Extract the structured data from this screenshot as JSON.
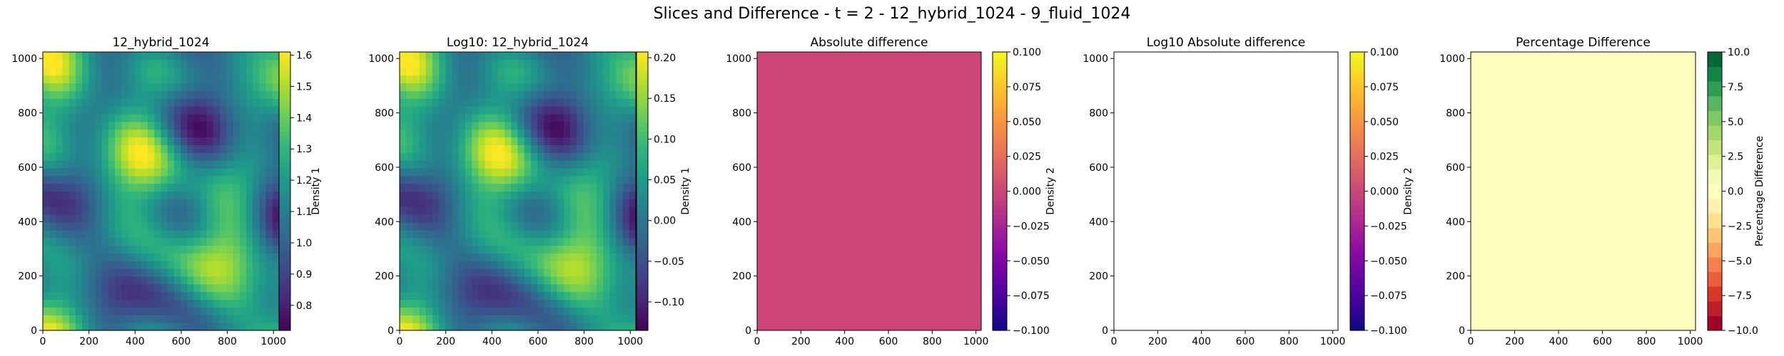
{
  "figure": {
    "suptitle": "Slices and Difference - t = 2 - 12_hybrid_1024 - 9_fluid_1024"
  },
  "chart_data": [
    {
      "type": "heatmap",
      "title": "12_hybrid_1024",
      "xlim": [
        0,
        1024
      ],
      "ylim": [
        0,
        1024
      ],
      "x_ticks": [
        "0",
        "200",
        "400",
        "600",
        "800",
        "1000"
      ],
      "y_ticks": [
        "0",
        "200",
        "400",
        "600",
        "800",
        "1000"
      ],
      "field": "density_pattern",
      "colormap": "viridis",
      "colorbar": {
        "label": "Density 1",
        "range": [
          0.72,
          1.61
        ],
        "ticks": [
          "0.8",
          "0.9",
          "1.0",
          "1.1",
          "1.2",
          "1.3",
          "1.4",
          "1.5",
          "1.6"
        ],
        "tick_values": [
          0.8,
          0.9,
          1.0,
          1.1,
          1.2,
          1.3,
          1.4,
          1.5,
          1.6
        ]
      }
    },
    {
      "type": "heatmap",
      "title": "Log10: 12_hybrid_1024",
      "xlim": [
        0,
        1024
      ],
      "ylim": [
        0,
        1024
      ],
      "x_ticks": [
        "0",
        "200",
        "400",
        "600",
        "800",
        "1000"
      ],
      "y_ticks": [
        "0",
        "200",
        "400",
        "600",
        "800",
        "1000"
      ],
      "field": "density_pattern",
      "colormap": "viridis",
      "colorbar": {
        "label": "Density 1",
        "range": [
          -0.135,
          0.207
        ],
        "ticks": [
          "−0.10",
          "−0.05",
          "0.00",
          "0.05",
          "0.10",
          "0.15",
          "0.20"
        ],
        "tick_values": [
          -0.1,
          -0.05,
          0.0,
          0.05,
          0.1,
          0.15,
          0.2
        ]
      }
    },
    {
      "type": "heatmap",
      "title": "Absolute difference",
      "xlim": [
        0,
        1024
      ],
      "ylim": [
        0,
        1024
      ],
      "x_ticks": [
        "0",
        "200",
        "400",
        "600",
        "800",
        "1000"
      ],
      "y_ticks": [
        "0",
        "200",
        "400",
        "600",
        "800",
        "1000"
      ],
      "field": "uniform",
      "fill_color": "#cc4778",
      "colormap": "plasma",
      "colorbar": {
        "label": "Density 2",
        "range": [
          -0.1,
          0.1
        ],
        "ticks": [
          "−0.100",
          "−0.075",
          "−0.050",
          "−0.025",
          "0.000",
          "0.025",
          "0.050",
          "0.075",
          "0.100"
        ],
        "tick_values": [
          -0.1,
          -0.075,
          -0.05,
          -0.025,
          0.0,
          0.025,
          0.05,
          0.075,
          0.1
        ]
      }
    },
    {
      "type": "heatmap",
      "title": "Log10 Absolute difference",
      "xlim": [
        0,
        1024
      ],
      "ylim": [
        0,
        1024
      ],
      "x_ticks": [
        "0",
        "200",
        "400",
        "600",
        "800",
        "1000"
      ],
      "y_ticks": [
        "0",
        "200",
        "400",
        "600",
        "800",
        "1000"
      ],
      "field": "empty",
      "fill_color": "#ffffff",
      "colormap": "plasma",
      "colorbar": {
        "label": "Density 2",
        "range": [
          -0.1,
          0.1
        ],
        "ticks": [
          "−0.100",
          "−0.075",
          "−0.050",
          "−0.025",
          "0.000",
          "0.025",
          "0.050",
          "0.075",
          "0.100"
        ],
        "tick_values": [
          -0.1,
          -0.075,
          -0.05,
          -0.025,
          0.0,
          0.025,
          0.05,
          0.075,
          0.1
        ]
      }
    },
    {
      "type": "heatmap",
      "title": "Percentage Difference",
      "xlim": [
        0,
        1024
      ],
      "ylim": [
        0,
        1024
      ],
      "x_ticks": [
        "0",
        "200",
        "400",
        "600",
        "800",
        "1000"
      ],
      "y_ticks": [
        "0",
        "200",
        "400",
        "600",
        "800",
        "1000"
      ],
      "field": "uniform",
      "fill_color": "#ffffbf",
      "colormap": "RdYlGn_discrete",
      "colorbar": {
        "label": "Percentage Difference",
        "range": [
          -10,
          10
        ],
        "ticks": [
          "−10.0",
          "−7.5",
          "−5.0",
          "−2.5",
          "0.0",
          "2.5",
          "5.0",
          "7.5",
          "10.0"
        ],
        "tick_values": [
          -10,
          -7.5,
          -5,
          -2.5,
          0,
          2.5,
          5,
          7.5,
          10
        ],
        "discrete_levels": [
          "#a50026",
          "#c01f27",
          "#da372a",
          "#ec5d3b",
          "#f67f4b",
          "#fca55d",
          "#fdc474",
          "#fee08b",
          "#fff2aa",
          "#ffffbf",
          "#f3fab6",
          "#dff293",
          "#c2e57b",
          "#a2d76a",
          "#7fc866",
          "#57b65f",
          "#2e9f52",
          "#138647",
          "#006837"
        ]
      }
    }
  ]
}
